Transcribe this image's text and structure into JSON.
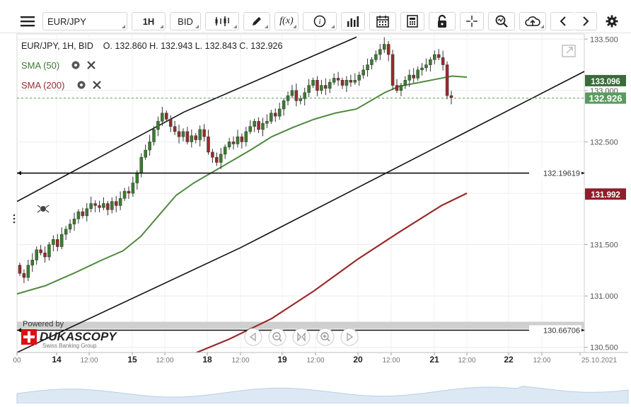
{
  "toolbar": {
    "symbol": "EUR/JPY",
    "timeframe": "1H",
    "price_type": "BID",
    "fx_label": "f(x)"
  },
  "header": {
    "ohlc_line": "EUR/JPY, 1H, BID    O. 132.860 H. 132.943 L. 132.843 C. 132.926"
  },
  "indicators": [
    {
      "label": "SMA (50)",
      "color": "#3a7d2e"
    },
    {
      "label": "SMA (200)",
      "color": "#9b2a2a"
    }
  ],
  "colors": {
    "up": "#3a7d2e",
    "down": "#9b2a2a",
    "sma50": "#4f8a3f",
    "sma200": "#9b2a2a",
    "price_badge": "#5b9a5f",
    "sma50_badge": "#3b6a3c",
    "sma200_badge": "#8e1f2a"
  },
  "chart_data": {
    "type": "candlestick",
    "instrument": "EUR/JPY",
    "timeframe": "1H",
    "ohlc": {
      "open": 132.86,
      "high": 132.943,
      "low": 132.843,
      "close": 132.926
    },
    "y_axis": {
      "min": 130.45,
      "max": 133.55,
      "ticks": [
        133.5,
        133.0,
        132.5,
        132.0,
        131.5,
        131.0,
        130.5
      ]
    },
    "x_ticks": [
      "00",
      "14",
      "12:00",
      "15",
      "12:00",
      "18",
      "12:00",
      "19",
      "12:00",
      "20",
      "12:00",
      "21",
      "12:00",
      "22",
      "12:00",
      "25.10.2021"
    ],
    "price_badges": {
      "last": "132.926",
      "sma50": "133.096",
      "sma200": "131.992"
    },
    "horizontal_lines": [
      {
        "value": 132.19619,
        "label": "132.19619"
      },
      {
        "value": 130.66706,
        "label": "130.66706"
      }
    ],
    "sma50_points": [
      [
        0,
        131.02
      ],
      [
        40,
        131.1
      ],
      [
        80,
        131.22
      ],
      [
        120,
        131.35
      ],
      [
        150,
        131.44
      ],
      [
        175,
        131.58
      ],
      [
        200,
        131.78
      ],
      [
        225,
        131.98
      ],
      [
        250,
        132.1
      ],
      [
        275,
        132.2
      ],
      [
        300,
        132.3
      ],
      [
        330,
        132.42
      ],
      [
        360,
        132.55
      ],
      [
        390,
        132.64
      ],
      [
        420,
        132.72
      ],
      [
        450,
        132.78
      ],
      [
        480,
        132.82
      ],
      [
        500,
        132.9
      ],
      [
        520,
        132.98
      ],
      [
        540,
        133.04
      ],
      [
        570,
        133.08
      ],
      [
        600,
        133.12
      ],
      [
        615,
        133.14
      ],
      [
        636,
        133.13
      ]
    ],
    "sma200_points": [
      [
        240,
        130.41
      ],
      [
        300,
        130.58
      ],
      [
        360,
        130.78
      ],
      [
        420,
        131.05
      ],
      [
        480,
        131.35
      ],
      [
        540,
        131.62
      ],
      [
        600,
        131.88
      ],
      [
        636,
        132.0
      ]
    ],
    "trend_lines": [
      {
        "name": "upper channel",
        "points": [
          [
            0,
            131.92
          ],
          [
            236,
            132.79
          ],
          [
            480,
            133.52
          ]
        ]
      },
      {
        "name": "lower channel",
        "points": [
          [
            0,
            130.45
          ],
          [
            316,
            131.47
          ],
          [
            826,
            133.27
          ]
        ]
      }
    ],
    "candles": {
      "start": 131.3,
      "closes": [
        131.22,
        131.18,
        131.3,
        131.35,
        131.45,
        131.42,
        131.38,
        131.5,
        131.55,
        131.48,
        131.6,
        131.65,
        131.7,
        131.75,
        131.82,
        131.78,
        131.85,
        131.9,
        131.88,
        131.86,
        131.9,
        131.84,
        131.92,
        131.88,
        131.95,
        132.02,
        132.0,
        132.1,
        132.2,
        132.35,
        132.42,
        132.5,
        132.62,
        132.7,
        132.78,
        132.72,
        132.65,
        132.6,
        132.55,
        132.6,
        132.5,
        132.56,
        132.52,
        132.62,
        132.55,
        132.4,
        132.35,
        132.3,
        132.38,
        132.45,
        132.5,
        132.48,
        132.55,
        132.5,
        132.6,
        132.65,
        132.7,
        132.62,
        132.68,
        132.7,
        132.78,
        132.75,
        132.82,
        132.9,
        132.95,
        133.0,
        132.9,
        132.92,
        132.98,
        133.05,
        133.1,
        133.0,
        133.05,
        133.02,
        133.08,
        133.12,
        133.1,
        133.05,
        133.1,
        133.08,
        133.1,
        133.15,
        133.2,
        133.25,
        133.3,
        133.35,
        133.4,
        133.45,
        133.35,
        133.05,
        133.0,
        133.05,
        133.1,
        133.15,
        133.12,
        133.2,
        133.22,
        133.25,
        133.3,
        133.35,
        133.32,
        133.25,
        132.95,
        132.93
      ],
      "highs_extra": 0.05,
      "lows_extra": 0.05
    }
  }
}
